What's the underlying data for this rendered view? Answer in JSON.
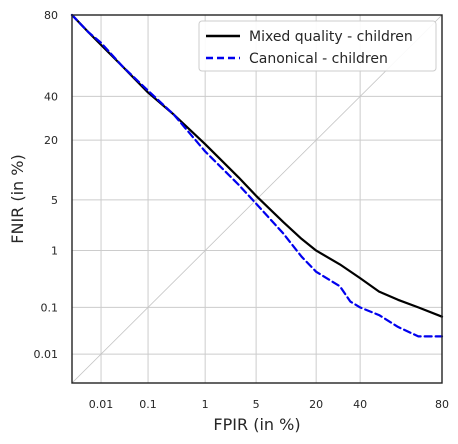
{
  "chart_data": {
    "type": "line",
    "title": "",
    "xlabel": "FPIR (in %)",
    "ylabel": "FNIR (in %)",
    "axis_scale": "normal-deviate (probit)",
    "xlim": [
      0.002,
      80
    ],
    "ylim": [
      0.002,
      80
    ],
    "xticks": [
      0.01,
      0.1,
      1,
      5,
      20,
      40,
      80
    ],
    "xtick_labels": [
      "0.01",
      "0.1",
      "1",
      "5",
      "20",
      "40",
      "80"
    ],
    "yticks": [
      0.01,
      0.1,
      1,
      5,
      20,
      40,
      80
    ],
    "ytick_labels": [
      "0.01",
      "0.1",
      "1",
      "5",
      "20",
      "40",
      "80"
    ],
    "grid": true,
    "legend_position": "top-right",
    "reference_line": "diagonal FPIR = FNIR",
    "series": [
      {
        "name": "Mixed quality - children",
        "color": "#000000",
        "style": "solid",
        "x": [
          0.002,
          0.005,
          0.01,
          0.03,
          0.1,
          0.3,
          1,
          3,
          5,
          10,
          15,
          20,
          30,
          40,
          50,
          60,
          70,
          80
        ],
        "y": [
          80,
          73,
          67,
          56,
          42,
          31,
          18.5,
          9,
          5.6,
          2.6,
          1.5,
          1.0,
          0.6,
          0.35,
          0.2,
          0.14,
          0.1,
          0.065
        ]
      },
      {
        "name": "Canonical - children",
        "color": "#0000ee",
        "style": "dashed",
        "x": [
          0.002,
          0.005,
          0.01,
          0.03,
          0.1,
          0.3,
          1,
          3,
          5,
          10,
          15,
          20,
          30,
          35,
          40,
          50,
          60,
          70,
          80
        ],
        "y": [
          80,
          73,
          68,
          56,
          43,
          31,
          16,
          7.5,
          4.5,
          1.8,
          0.8,
          0.45,
          0.25,
          0.13,
          0.1,
          0.07,
          0.04,
          0.025,
          0.025
        ]
      }
    ]
  }
}
